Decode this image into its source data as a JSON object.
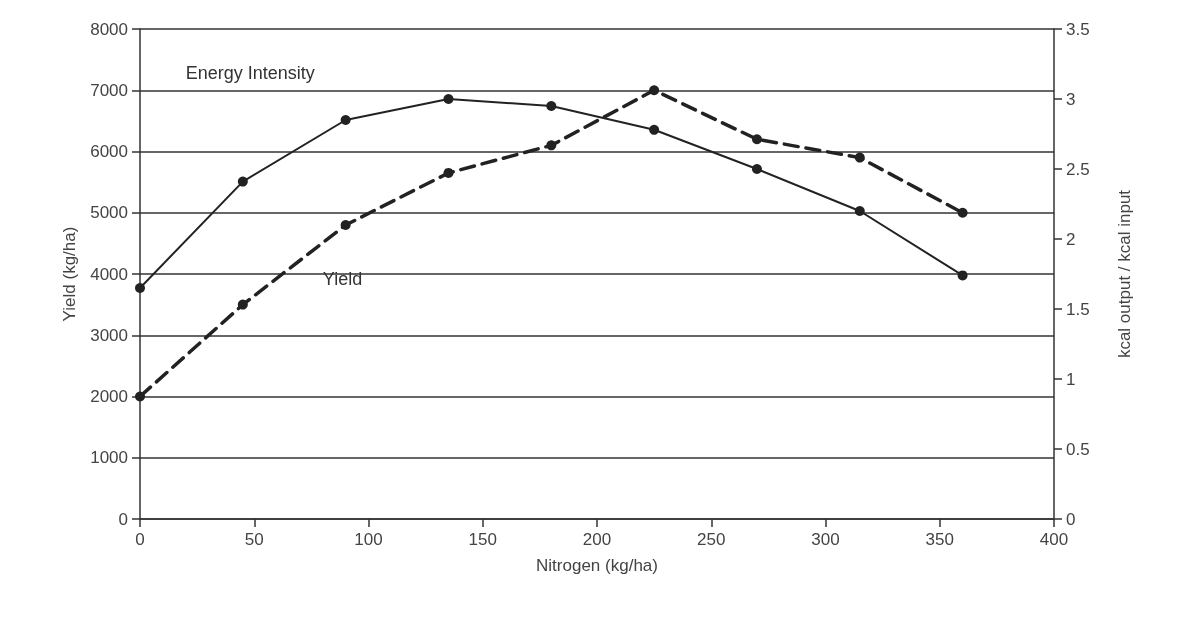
{
  "chart_data": {
    "type": "line",
    "x": [
      0,
      45,
      90,
      135,
      180,
      225,
      270,
      315,
      360
    ],
    "series": [
      {
        "name": "Energy Intensity",
        "color": "#222222",
        "axis": "y2",
        "line_style": "solid",
        "values": [
          1.65,
          2.41,
          2.85,
          3.0,
          2.95,
          2.78,
          2.5,
          2.2,
          1.74
        ]
      },
      {
        "name": "Yield",
        "color": "#222222",
        "line_style": "dashed",
        "values": [
          2000,
          3500,
          4800,
          5650,
          6100,
          7000,
          6200,
          5900,
          5000
        ]
      }
    ],
    "xlabel": "Nitrogen (kg/ha)",
    "ylabel": "Yield (kg/ha)",
    "y2label": "kcal output / kcal input",
    "xlim": [
      0,
      400
    ],
    "xticks": [
      0,
      50,
      100,
      150,
      200,
      250,
      300,
      350,
      400
    ],
    "ylim": [
      0,
      8000
    ],
    "yticks": [
      0,
      1000,
      2000,
      3000,
      4000,
      5000,
      6000,
      7000,
      8000
    ],
    "y2lim": [
      0,
      3.5
    ],
    "y2ticks": [
      0,
      0.5,
      1,
      1.5,
      2,
      2.5,
      3,
      3.5
    ],
    "grid": "y",
    "legend": false,
    "marker": "circle"
  }
}
